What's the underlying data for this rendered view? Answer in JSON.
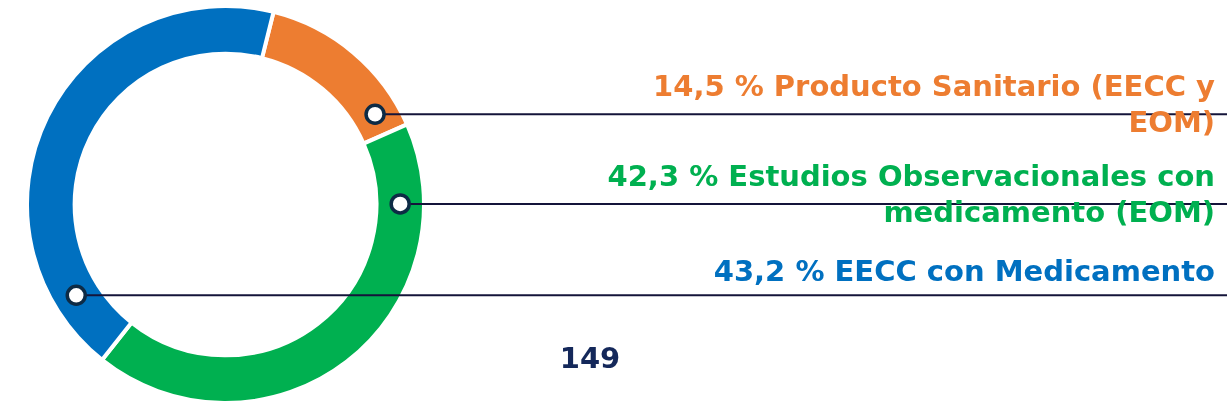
{
  "chart_data": {
    "type": "donut",
    "categories": [
      "Producto Sanitario (EECC y EOM)",
      "Estudios Observacionales con medicamento (EOM)",
      "EECC con Medicamento"
    ],
    "values": [
      14.5,
      42.3,
      43.2
    ],
    "colors": [
      "#ed7d31",
      "#00b050",
      "#0070c0"
    ],
    "value_labels": [
      "14,5 %",
      "42,3 %",
      "43,2 %"
    ],
    "annotations": [
      "149"
    ],
    "legend": false
  }
}
